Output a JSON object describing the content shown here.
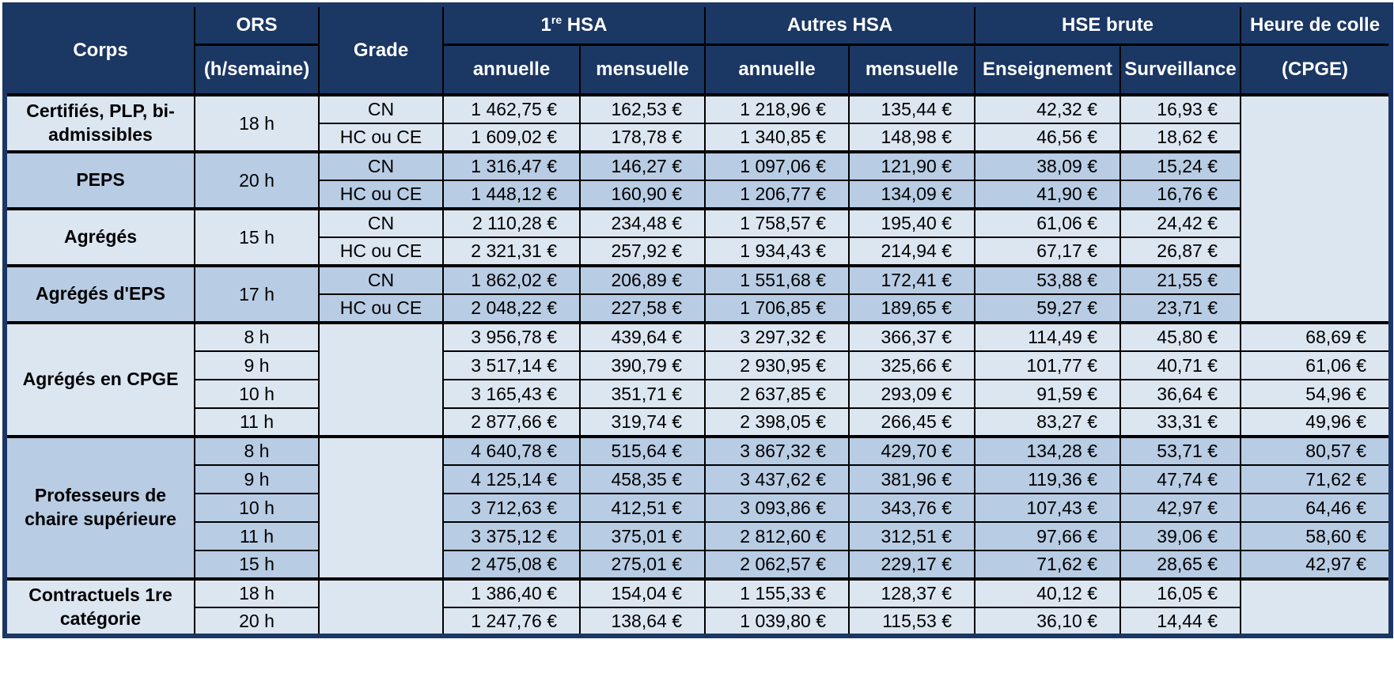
{
  "colors": {
    "header_bg": "#1b3763",
    "row_light": "#dce6f1",
    "row_medium": "#b8cce4",
    "border_dark": "#000000",
    "outer_border": "#1b3763",
    "header_text": "#ffffff",
    "body_text": "#000000"
  },
  "table": {
    "header": {
      "corps": "Corps",
      "ors_line1": "ORS",
      "ors_line2": "(h/semaine)",
      "grade": "Grade",
      "first_hsa": {
        "prefix": "1",
        "sup": "re",
        "rest": " HSA"
      },
      "autres_hsa": "Autres HSA",
      "hse_brute": "HSE brute",
      "colle_line1": "Heure de colle",
      "colle_line2": "(CPGE)",
      "annuelle": "annuelle",
      "mensuelle": "mensuelle",
      "enseignement": "Enseignement",
      "surveillance": "Surveillance"
    },
    "sections": [
      {
        "corps": "Certifiés, PLP, bi-admissibles",
        "shade": "light",
        "ors_merged": "18 h",
        "grade_merged": false,
        "colle": "group1",
        "rows": [
          {
            "grade": "CN",
            "values": [
              "1 462,75 €",
              "162,53 €",
              "1 218,96 €",
              "135,44 €",
              "42,32 €",
              "16,93 €"
            ]
          },
          {
            "grade": "HC ou CE",
            "values": [
              "1 609,02 €",
              "178,78 €",
              "1 340,85 €",
              "148,98 €",
              "46,56 €",
              "18,62 €"
            ]
          }
        ]
      },
      {
        "corps": "PEPS",
        "shade": "medium",
        "ors_merged": "20 h",
        "grade_merged": false,
        "colle": "group1",
        "rows": [
          {
            "grade": "CN",
            "values": [
              "1 316,47 €",
              "146,27 €",
              "1 097,06 €",
              "121,90 €",
              "38,09 €",
              "15,24 €"
            ]
          },
          {
            "grade": "HC ou CE",
            "values": [
              "1 448,12 €",
              "160,90 €",
              "1 206,77 €",
              "134,09 €",
              "41,90 €",
              "16,76 €"
            ]
          }
        ]
      },
      {
        "corps": "Agrégés",
        "shade": "light",
        "ors_merged": "15 h",
        "grade_merged": false,
        "colle": "group1",
        "rows": [
          {
            "grade": "CN",
            "values": [
              "2 110,28 €",
              "234,48 €",
              "1 758,57 €",
              "195,40 €",
              "61,06 €",
              "24,42 €"
            ]
          },
          {
            "grade": "HC ou CE",
            "values": [
              "2 321,31 €",
              "257,92 €",
              "1 934,43 €",
              "214,94 €",
              "67,17 €",
              "26,87 €"
            ]
          }
        ]
      },
      {
        "corps": "Agrégés d'EPS",
        "shade": "medium",
        "ors_merged": "17 h",
        "grade_merged": false,
        "colle": "group1",
        "rows": [
          {
            "grade": "CN",
            "values": [
              "1 862,02 €",
              "206,89 €",
              "1 551,68 €",
              "172,41 €",
              "53,88 €",
              "21,55 €"
            ]
          },
          {
            "grade": "HC ou CE",
            "values": [
              "2 048,22 €",
              "227,58 €",
              "1 706,85 €",
              "189,65 €",
              "59,27 €",
              "23,71 €"
            ]
          }
        ]
      },
      {
        "corps": "Agrégés en CPGE",
        "shade": "light",
        "ors_merged": null,
        "grade_merged": true,
        "colle": "per-row",
        "rows": [
          {
            "ors": "8 h",
            "values": [
              "3 956,78 €",
              "439,64 €",
              "3 297,32 €",
              "366,37 €",
              "114,49 €",
              "45,80 €"
            ],
            "colle": "68,69 €"
          },
          {
            "ors": "9 h",
            "values": [
              "3 517,14 €",
              "390,79 €",
              "2 930,95 €",
              "325,66 €",
              "101,77 €",
              "40,71 €"
            ],
            "colle": "61,06 €"
          },
          {
            "ors": "10 h",
            "values": [
              "3 165,43 €",
              "351,71 €",
              "2 637,85 €",
              "293,09 €",
              "91,59 €",
              "36,64 €"
            ],
            "colle": "54,96 €"
          },
          {
            "ors": "11 h",
            "values": [
              "2 877,66 €",
              "319,74 €",
              "2 398,05 €",
              "266,45 €",
              "83,27 €",
              "33,31 €"
            ],
            "colle": "49,96 €"
          }
        ]
      },
      {
        "corps": "Professeurs de chaire supérieure",
        "shade": "medium",
        "ors_merged": null,
        "grade_merged": true,
        "colle": "per-row",
        "rows": [
          {
            "ors": "8 h",
            "values": [
              "4 640,78 €",
              "515,64 €",
              "3 867,32 €",
              "429,70 €",
              "134,28 €",
              "53,71 €"
            ],
            "colle": "80,57 €"
          },
          {
            "ors": "9 h",
            "values": [
              "4 125,14 €",
              "458,35 €",
              "3 437,62 €",
              "381,96 €",
              "119,36 €",
              "47,74 €"
            ],
            "colle": "71,62 €"
          },
          {
            "ors": "10 h",
            "values": [
              "3 712,63 €",
              "412,51 €",
              "3 093,86 €",
              "343,76 €",
              "107,43 €",
              "42,97 €"
            ],
            "colle": "64,46 €"
          },
          {
            "ors": "11 h",
            "values": [
              "3 375,12 €",
              "375,01 €",
              "2 812,60 €",
              "312,51 €",
              "97,66 €",
              "39,06 €"
            ],
            "colle": "58,60 €"
          },
          {
            "ors": "15 h",
            "values": [
              "2 475,08 €",
              "275,01 €",
              "2 062,57 €",
              "229,17 €",
              "71,62 €",
              "28,65 €"
            ],
            "colle": "42,97 €"
          }
        ]
      },
      {
        "corps": "Contractuels 1re catégorie",
        "shade": "light",
        "ors_merged": null,
        "grade_merged": true,
        "colle": "merged",
        "rows": [
          {
            "ors": "18 h",
            "values": [
              "1 386,40 €",
              "154,04 €",
              "1 155,33 €",
              "128,37 €",
              "40,12 €",
              "16,05 €"
            ]
          },
          {
            "ors": "20 h",
            "values": [
              "1 247,76 €",
              "138,64 €",
              "1 039,80 €",
              "115,53 €",
              "36,10 €",
              "14,44 €"
            ]
          }
        ]
      }
    ]
  }
}
